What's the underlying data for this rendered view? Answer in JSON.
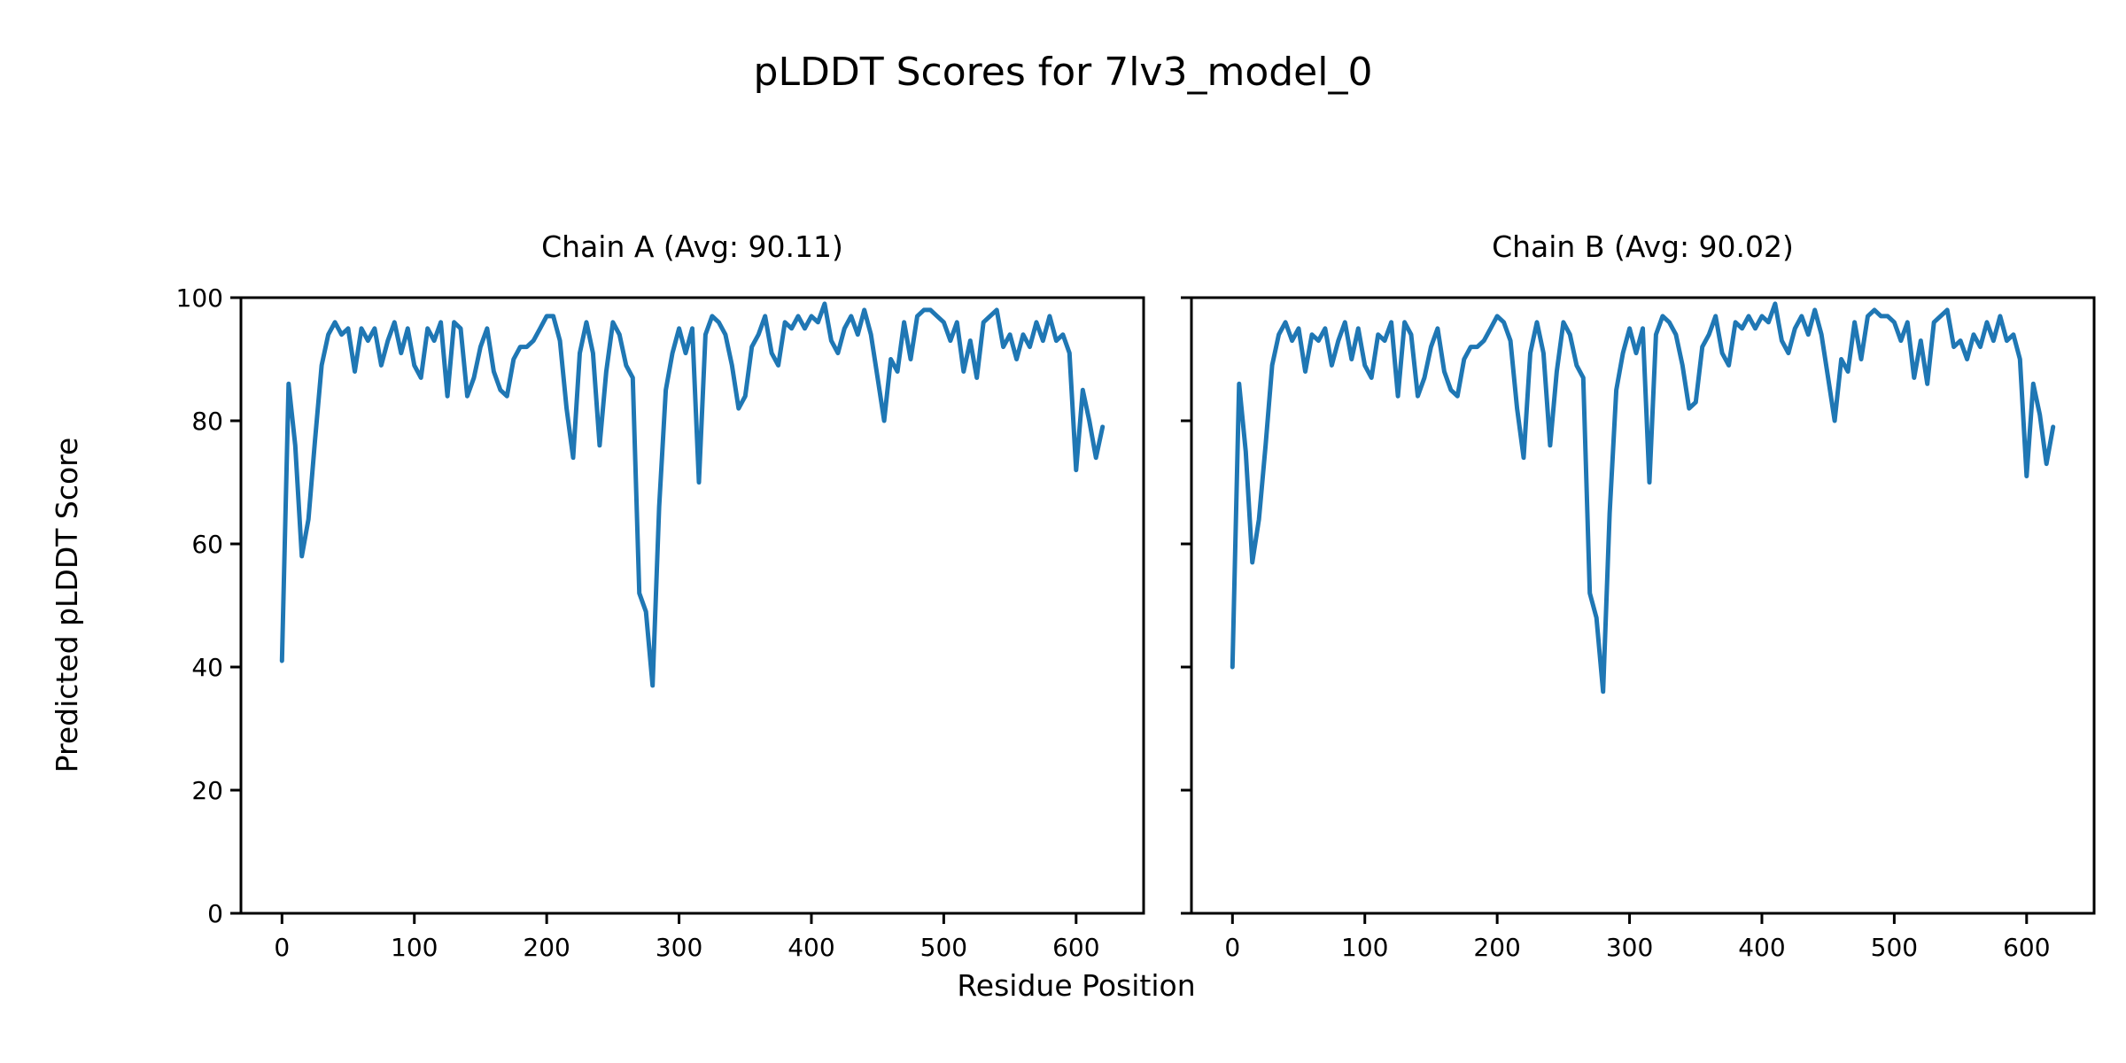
{
  "figure": {
    "background": "#ffffff",
    "axis_color": "#000000"
  },
  "chart_data": {
    "type": "line",
    "title": "pLDDT Scores for 7lv3_model_0",
    "xlabel": "Residue Position",
    "ylabel": "Predicted pLDDT Score",
    "line_color": "#1f77b4",
    "grid": false,
    "legend": null,
    "xlim": [
      -31,
      651
    ],
    "ylim": [
      0,
      100
    ],
    "xticks": [
      0,
      100,
      200,
      300,
      400,
      500,
      600
    ],
    "yticks": [
      0,
      20,
      40,
      60,
      80,
      100
    ],
    "x_start": 0,
    "x_step": 5,
    "subplots": [
      {
        "name": "chain-a",
        "title": "Chain A (Avg: 90.11)",
        "avg": 90.11,
        "values": [
          41,
          86,
          76,
          58,
          64,
          77,
          89,
          94,
          96,
          94,
          95,
          88,
          95,
          93,
          95,
          89,
          93,
          96,
          91,
          95,
          89,
          87,
          95,
          93,
          96,
          84,
          96,
          95,
          84,
          87,
          92,
          95,
          88,
          85,
          84,
          90,
          92,
          92,
          93,
          95,
          97,
          97,
          93,
          82,
          74,
          91,
          96,
          91,
          76,
          88,
          96,
          94,
          89,
          87,
          52,
          49,
          37,
          66,
          85,
          91,
          95,
          91,
          95,
          70,
          94,
          97,
          96,
          94,
          89,
          82,
          84,
          92,
          94,
          97,
          91,
          89,
          96,
          95,
          97,
          95,
          97,
          96,
          99,
          93,
          91,
          95,
          97,
          94,
          98,
          94,
          87,
          80,
          90,
          88,
          96,
          90,
          97,
          98,
          98,
          97,
          96,
          93,
          96,
          88,
          93,
          87,
          96,
          97,
          98,
          92,
          94,
          90,
          94,
          92,
          96,
          93,
          97,
          93,
          94,
          91,
          72,
          85,
          80,
          74,
          79
        ]
      },
      {
        "name": "chain-b",
        "title": "Chain B (Avg: 90.02)",
        "avg": 90.02,
        "values": [
          40,
          86,
          75,
          57,
          64,
          76,
          89,
          94,
          96,
          93,
          95,
          88,
          94,
          93,
          95,
          89,
          93,
          96,
          90,
          95,
          89,
          87,
          94,
          93,
          96,
          84,
          96,
          94,
          84,
          87,
          92,
          95,
          88,
          85,
          84,
          90,
          92,
          92,
          93,
          95,
          97,
          96,
          93,
          82,
          74,
          91,
          96,
          91,
          76,
          88,
          96,
          94,
          89,
          87,
          52,
          48,
          36,
          65,
          85,
          91,
          95,
          91,
          95,
          70,
          94,
          97,
          96,
          94,
          89,
          82,
          83,
          92,
          94,
          97,
          91,
          89,
          96,
          95,
          97,
          95,
          97,
          96,
          99,
          93,
          91,
          95,
          97,
          94,
          98,
          94,
          87,
          80,
          90,
          88,
          96,
          90,
          97,
          98,
          97,
          97,
          96,
          93,
          96,
          87,
          93,
          86,
          96,
          97,
          98,
          92,
          93,
          90,
          94,
          92,
          96,
          93,
          97,
          93,
          94,
          90,
          71,
          86,
          81,
          73,
          79
        ]
      }
    ]
  }
}
